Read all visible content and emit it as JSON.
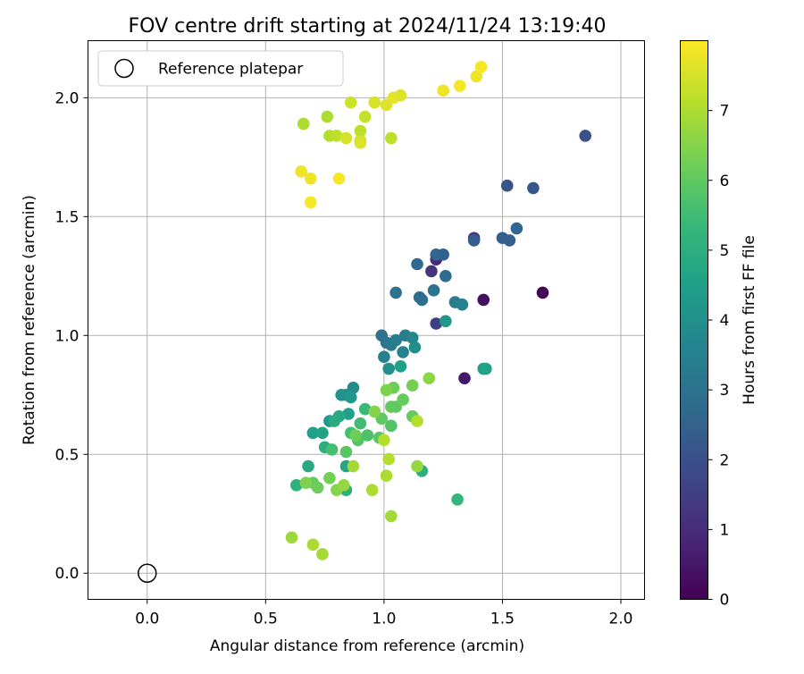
{
  "chart_data": {
    "type": "scatter",
    "title": "FOV centre drift starting at 2024/11/24 13:19:40",
    "xlabel": "Angular distance from reference (arcmin)",
    "ylabel": "Rotation from reference (arcmin)",
    "xlim": [
      -0.25,
      2.1
    ],
    "ylim": [
      -0.11,
      2.24
    ],
    "xticks": [
      0.0,
      0.5,
      1.0,
      1.5,
      2.0
    ],
    "xtick_labels": [
      "0.0",
      "0.5",
      "1.0",
      "1.5",
      "2.0"
    ],
    "yticks": [
      0.0,
      0.5,
      1.0,
      1.5,
      2.0
    ],
    "ytick_labels": [
      "0.0",
      "0.5",
      "1.0",
      "1.5",
      "2.0"
    ],
    "grid": true,
    "legend": {
      "location": "upper-left",
      "entries": [
        {
          "label": "Reference platepar",
          "marker": "open-circle"
        }
      ]
    },
    "reference_point": {
      "x": 0.0,
      "y": 0.0
    },
    "colorbar": {
      "label": "Hours from first FF file",
      "colormap": "viridis",
      "range": [
        0,
        8
      ],
      "ticks": [
        0,
        1,
        2,
        3,
        4,
        5,
        6,
        7
      ],
      "tick_labels": [
        "0",
        "1",
        "2",
        "3",
        "4",
        "5",
        "6",
        "7"
      ]
    },
    "points": [
      {
        "x": 1.67,
        "y": 1.18,
        "c": 0.1
      },
      {
        "x": 1.42,
        "y": 1.15,
        "c": 0.3
      },
      {
        "x": 1.34,
        "y": 0.82,
        "c": 0.5
      },
      {
        "x": 1.22,
        "y": 1.32,
        "c": 1.0
      },
      {
        "x": 1.2,
        "y": 1.27,
        "c": 1.2
      },
      {
        "x": 1.38,
        "y": 1.41,
        "c": 1.3
      },
      {
        "x": 1.22,
        "y": 1.05,
        "c": 1.5
      },
      {
        "x": 1.85,
        "y": 1.84,
        "c": 2.0
      },
      {
        "x": 1.52,
        "y": 1.63,
        "c": 2.1
      },
      {
        "x": 1.63,
        "y": 1.62,
        "c": 2.2
      },
      {
        "x": 1.38,
        "y": 1.4,
        "c": 2.3
      },
      {
        "x": 1.5,
        "y": 1.41,
        "c": 2.4
      },
      {
        "x": 1.53,
        "y": 1.4,
        "c": 2.4
      },
      {
        "x": 1.56,
        "y": 1.45,
        "c": 2.6
      },
      {
        "x": 1.25,
        "y": 1.34,
        "c": 2.5
      },
      {
        "x": 1.22,
        "y": 1.34,
        "c": 2.6
      },
      {
        "x": 1.14,
        "y": 1.3,
        "c": 2.7
      },
      {
        "x": 1.26,
        "y": 1.25,
        "c": 2.8
      },
      {
        "x": 1.15,
        "y": 1.16,
        "c": 2.8
      },
      {
        "x": 1.16,
        "y": 1.15,
        "c": 2.9
      },
      {
        "x": 1.21,
        "y": 1.19,
        "c": 3.0
      },
      {
        "x": 1.05,
        "y": 1.18,
        "c": 3.0
      },
      {
        "x": 1.3,
        "y": 1.14,
        "c": 3.3
      },
      {
        "x": 1.33,
        "y": 1.13,
        "c": 3.5
      },
      {
        "x": 0.99,
        "y": 1.0,
        "c": 3.0
      },
      {
        "x": 1.01,
        "y": 0.97,
        "c": 3.1
      },
      {
        "x": 1.03,
        "y": 0.96,
        "c": 3.3
      },
      {
        "x": 1.09,
        "y": 1.0,
        "c": 3.3
      },
      {
        "x": 1.05,
        "y": 0.98,
        "c": 3.4
      },
      {
        "x": 1.0,
        "y": 0.91,
        "c": 3.5
      },
      {
        "x": 1.08,
        "y": 0.93,
        "c": 3.6
      },
      {
        "x": 1.12,
        "y": 0.99,
        "c": 3.7
      },
      {
        "x": 1.13,
        "y": 0.95,
        "c": 3.9
      },
      {
        "x": 1.02,
        "y": 0.86,
        "c": 4.0
      },
      {
        "x": 1.26,
        "y": 1.06,
        "c": 4.2
      },
      {
        "x": 1.07,
        "y": 0.87,
        "c": 4.5
      },
      {
        "x": 1.42,
        "y": 0.86,
        "c": 4.5
      },
      {
        "x": 1.43,
        "y": 0.86,
        "c": 4.6
      },
      {
        "x": 0.84,
        "y": 0.75,
        "c": 4.0
      },
      {
        "x": 0.87,
        "y": 0.78,
        "c": 3.9
      },
      {
        "x": 0.82,
        "y": 0.75,
        "c": 4.1
      },
      {
        "x": 0.86,
        "y": 0.74,
        "c": 4.2
      },
      {
        "x": 0.77,
        "y": 0.64,
        "c": 4.2
      },
      {
        "x": 0.85,
        "y": 0.67,
        "c": 4.5
      },
      {
        "x": 0.81,
        "y": 0.66,
        "c": 4.8
      },
      {
        "x": 0.7,
        "y": 0.59,
        "c": 4.5
      },
      {
        "x": 0.74,
        "y": 0.59,
        "c": 4.6
      },
      {
        "x": 0.79,
        "y": 0.64,
        "c": 4.9
      },
      {
        "x": 0.75,
        "y": 0.53,
        "c": 5.0
      },
      {
        "x": 0.84,
        "y": 0.45,
        "c": 4.7
      },
      {
        "x": 0.68,
        "y": 0.45,
        "c": 4.8
      },
      {
        "x": 0.63,
        "y": 0.37,
        "c": 5.1
      },
      {
        "x": 0.84,
        "y": 0.35,
        "c": 5.0
      },
      {
        "x": 1.16,
        "y": 0.43,
        "c": 5.0
      },
      {
        "x": 1.31,
        "y": 0.31,
        "c": 5.3
      },
      {
        "x": 0.9,
        "y": 0.63,
        "c": 5.5
      },
      {
        "x": 0.92,
        "y": 0.69,
        "c": 5.4
      },
      {
        "x": 0.86,
        "y": 0.59,
        "c": 5.6
      },
      {
        "x": 0.93,
        "y": 0.58,
        "c": 5.7
      },
      {
        "x": 0.89,
        "y": 0.56,
        "c": 5.8
      },
      {
        "x": 0.98,
        "y": 0.57,
        "c": 5.9
      },
      {
        "x": 0.78,
        "y": 0.52,
        "c": 5.6
      },
      {
        "x": 0.84,
        "y": 0.51,
        "c": 5.9
      },
      {
        "x": 0.99,
        "y": 0.65,
        "c": 6.0
      },
      {
        "x": 1.03,
        "y": 0.62,
        "c": 5.8
      },
      {
        "x": 1.03,
        "y": 0.7,
        "c": 6.1
      },
      {
        "x": 1.05,
        "y": 0.7,
        "c": 6.0
      },
      {
        "x": 1.04,
        "y": 0.78,
        "c": 6.2
      },
      {
        "x": 1.08,
        "y": 0.73,
        "c": 6.1
      },
      {
        "x": 1.12,
        "y": 0.66,
        "c": 6.1
      },
      {
        "x": 1.12,
        "y": 0.79,
        "c": 6.3
      },
      {
        "x": 1.01,
        "y": 0.77,
        "c": 6.4
      },
      {
        "x": 1.19,
        "y": 0.82,
        "c": 6.6
      },
      {
        "x": 0.96,
        "y": 0.68,
        "c": 6.5
      },
      {
        "x": 0.88,
        "y": 0.58,
        "c": 6.2
      },
      {
        "x": 0.77,
        "y": 0.4,
        "c": 6.3
      },
      {
        "x": 0.7,
        "y": 0.38,
        "c": 6.1
      },
      {
        "x": 0.72,
        "y": 0.36,
        "c": 6.2
      },
      {
        "x": 0.67,
        "y": 0.38,
        "c": 6.4
      },
      {
        "x": 0.8,
        "y": 0.35,
        "c": 6.5
      },
      {
        "x": 0.83,
        "y": 0.37,
        "c": 6.7
      },
      {
        "x": 0.61,
        "y": 0.15,
        "c": 6.8
      },
      {
        "x": 0.7,
        "y": 0.12,
        "c": 7.0
      },
      {
        "x": 0.74,
        "y": 0.08,
        "c": 6.9
      },
      {
        "x": 1.14,
        "y": 0.45,
        "c": 6.7
      },
      {
        "x": 0.87,
        "y": 0.45,
        "c": 6.9
      },
      {
        "x": 0.95,
        "y": 0.35,
        "c": 7.0
      },
      {
        "x": 1.01,
        "y": 0.41,
        "c": 7.0
      },
      {
        "x": 1.02,
        "y": 0.48,
        "c": 7.1
      },
      {
        "x": 1.03,
        "y": 0.24,
        "c": 6.9
      },
      {
        "x": 1.0,
        "y": 0.56,
        "c": 7.1
      },
      {
        "x": 1.14,
        "y": 0.64,
        "c": 7.1
      },
      {
        "x": 0.66,
        "y": 1.89,
        "c": 7.0
      },
      {
        "x": 0.76,
        "y": 1.92,
        "c": 7.0
      },
      {
        "x": 0.77,
        "y": 1.84,
        "c": 7.1
      },
      {
        "x": 0.8,
        "y": 1.84,
        "c": 7.2
      },
      {
        "x": 0.84,
        "y": 1.83,
        "c": 7.5
      },
      {
        "x": 0.9,
        "y": 1.86,
        "c": 7.2
      },
      {
        "x": 0.9,
        "y": 1.82,
        "c": 7.4
      },
      {
        "x": 0.9,
        "y": 1.81,
        "c": 7.6
      },
      {
        "x": 0.92,
        "y": 1.92,
        "c": 7.3
      },
      {
        "x": 0.86,
        "y": 1.98,
        "c": 7.4
      },
      {
        "x": 0.96,
        "y": 1.98,
        "c": 7.5
      },
      {
        "x": 1.03,
        "y": 1.83,
        "c": 7.2
      },
      {
        "x": 1.01,
        "y": 1.97,
        "c": 7.6
      },
      {
        "x": 1.04,
        "y": 2.0,
        "c": 7.7
      },
      {
        "x": 1.07,
        "y": 2.01,
        "c": 7.6
      },
      {
        "x": 1.25,
        "y": 2.03,
        "c": 7.8
      },
      {
        "x": 1.32,
        "y": 2.05,
        "c": 7.9
      },
      {
        "x": 1.39,
        "y": 2.09,
        "c": 7.8
      },
      {
        "x": 1.41,
        "y": 2.13,
        "c": 7.9
      },
      {
        "x": 0.65,
        "y": 1.69,
        "c": 7.8
      },
      {
        "x": 0.69,
        "y": 1.66,
        "c": 7.8
      },
      {
        "x": 0.81,
        "y": 1.66,
        "c": 7.9
      },
      {
        "x": 0.69,
        "y": 1.56,
        "c": 7.9
      }
    ]
  }
}
